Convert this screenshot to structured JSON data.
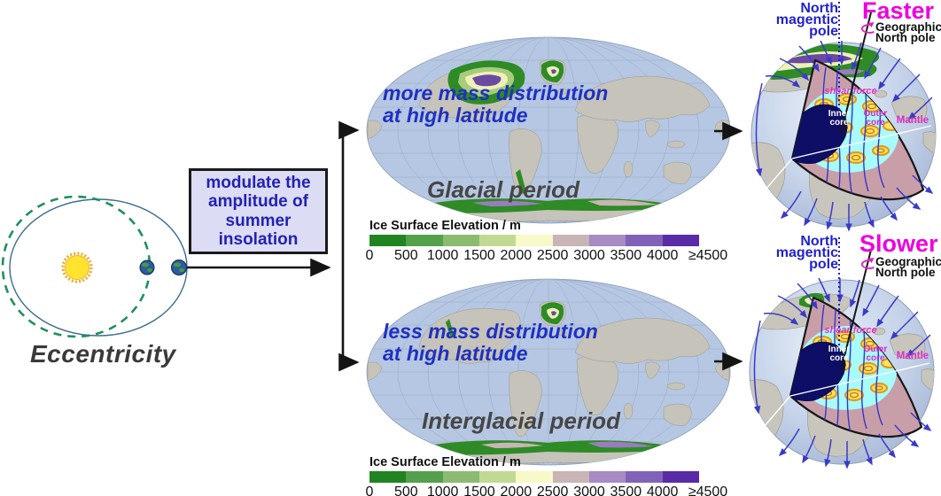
{
  "orbit": {
    "label": "Eccentricity"
  },
  "modulate_box": {
    "text": "modulate the\namplitude of\nsummer\ninsolation"
  },
  "glacial": {
    "annotation": "more mass distribution\nat high latitude",
    "period_label": "Glacial period"
  },
  "interglacial": {
    "annotation": "less mass distribution\nat high latitude",
    "period_label": "Interglacial period"
  },
  "colorbar": {
    "title": "Ice Surface Elevation / m",
    "ticks": [
      "0",
      "500",
      "1000",
      "1500",
      "2000",
      "2500",
      "3000",
      "3500",
      "4000",
      "≥4500"
    ],
    "colors": [
      "#208420",
      "#55a04c",
      "#8bbb70",
      "#c0da92",
      "#f8f9c8",
      "#c9b4b6",
      "#a78bc3",
      "#8162b8",
      "#5a2ba6"
    ]
  },
  "globes": {
    "glacial": {
      "speed": "Faster"
    },
    "interglacial": {
      "speed": "Slower"
    },
    "shared": {
      "magnetic_pole": "North\nmagentic\npole",
      "geographic_pole": "Geographic\nNorth pole",
      "shear_force": "shear force",
      "inner_core": "Inner\ncore",
      "outer_core": "Outer\ncore",
      "mantle": "Mantle"
    }
  },
  "colors": {
    "speed_magenta": "#ee00dd",
    "magnetic_blue": "#2222cc",
    "annotation_blue": "#2030c0",
    "period_gray": "#464646",
    "box_bg": "#dcdcf5",
    "box_text": "#2222b4",
    "map_ocean": "#b5c7e2",
    "map_land": "#c5c3ba",
    "mantle": "#c89fa9",
    "outer_core": "#a8fbfb",
    "inner_core": "#0e0e66",
    "field_line": "#3a3ac8"
  }
}
